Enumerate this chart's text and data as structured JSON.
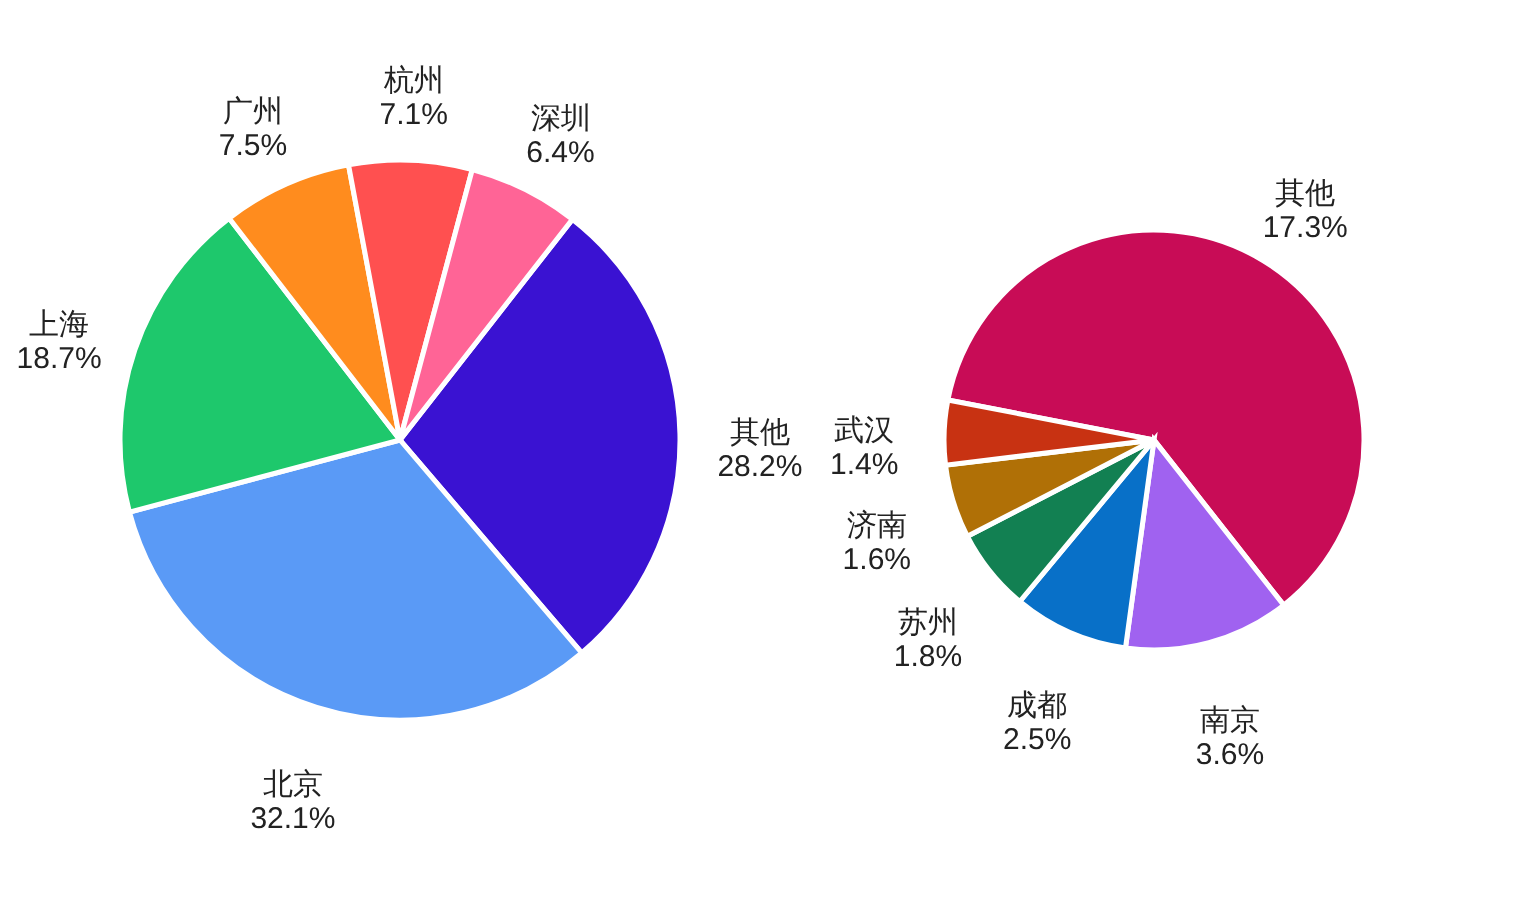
{
  "chart_data": [
    {
      "type": "pie",
      "categories": [
        "其他",
        "北京",
        "上海",
        "广州",
        "杭州",
        "深圳"
      ],
      "values": [
        28.2,
        32.1,
        18.7,
        7.5,
        7.1,
        6.4
      ],
      "value_labels": [
        "28.2%",
        "32.1%",
        "18.7%",
        "7.5%",
        "7.1%",
        "6.4%"
      ],
      "colors": [
        "#3a12d2",
        "#5a9af6",
        "#1ec86c",
        "#ff8c1e",
        "#ff5050",
        "#ff6496"
      ]
    },
    {
      "type": "pie",
      "categories": [
        "其他",
        "南京",
        "成都",
        "苏州",
        "济南",
        "武汉"
      ],
      "values": [
        17.3,
        3.6,
        2.5,
        1.8,
        1.6,
        1.4
      ],
      "value_labels": [
        "17.3%",
        "3.6%",
        "2.5%",
        "1.8%",
        "1.6%",
        "1.4%"
      ],
      "colors": [
        "#c80c56",
        "#a062f0",
        "#0870c8",
        "#128052",
        "#b07006",
        "#c83212"
      ]
    }
  ]
}
